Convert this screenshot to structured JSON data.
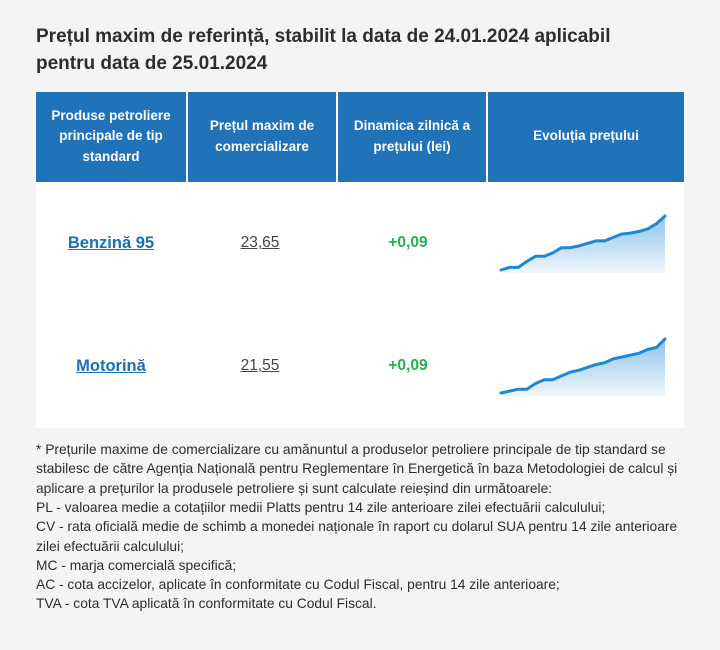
{
  "colors": {
    "page_bg": "#f4f4f4",
    "header_bg": "#2173b9",
    "link": "#1a6fb5",
    "positive": "#22b14c",
    "chart_line": "#1f88d6"
  },
  "title": "Prețul maxim de referință, stabilit la data de 24.01.2024 aplicabil pentru data de 25.01.2024",
  "table": {
    "headers": [
      "Produse petroliere principale de tip standard",
      "Prețul maxim de comercializare",
      "Dinamica zilnică a prețului (lei)",
      "Evoluția prețului"
    ],
    "rows": [
      {
        "product": "Benzină 95",
        "price": "23,65",
        "delta": "+0,09"
      },
      {
        "product": "Motorină",
        "price": "21,55",
        "delta": "+0,09"
      }
    ]
  },
  "footnote": {
    "lines": [
      "* Prețurile maxime de comercializare cu amănuntul a produselor petroliere principale de tip standard se stabilesc de către Agenția Națională pentru Reglementare în Energetică în baza Metodologiei de calcul și aplicare a prețurilor la produsele petroliere și sunt calculate reieșind din următoarele:",
      "PL - valoarea medie a cotațiilor medii Platts pentru 14 zile anterioare zilei efectuării calculului;",
      "CV - rata oficială medie de schimb a monedei naționale în raport cu dolarul SUA pentru 14 zile anterioare zilei efectuării calculului;",
      "MC - marja comercială specifică;",
      "AC - cota accizelor, aplicate în conformitate cu Codul Fiscal, pentru 14 zile anterioare;",
      "TVA - cota TVA aplicată în conformitate cu Codul Fiscal."
    ]
  },
  "chart_data": [
    {
      "type": "area",
      "name": "benzina-95-price-evolution",
      "title": "Evoluția prețului Benzină 95",
      "x_axis": "days (unlabeled sparkline)",
      "values": [
        23.02,
        23.05,
        23.05,
        23.12,
        23.18,
        23.18,
        23.22,
        23.28,
        23.28,
        23.3,
        23.33,
        23.36,
        23.36,
        23.4,
        23.44,
        23.45,
        23.47,
        23.5,
        23.56,
        23.65
      ],
      "line_color": "#1f88d6"
    },
    {
      "type": "area",
      "name": "motorina-price-evolution",
      "title": "Evoluția prețului Motorină",
      "x_axis": "days (unlabeled sparkline)",
      "values": [
        20.98,
        21.0,
        21.02,
        21.02,
        21.08,
        21.12,
        21.12,
        21.16,
        21.2,
        21.22,
        21.25,
        21.28,
        21.3,
        21.34,
        21.36,
        21.38,
        21.4,
        21.44,
        21.46,
        21.55
      ],
      "line_color": "#1f88d6"
    }
  ]
}
